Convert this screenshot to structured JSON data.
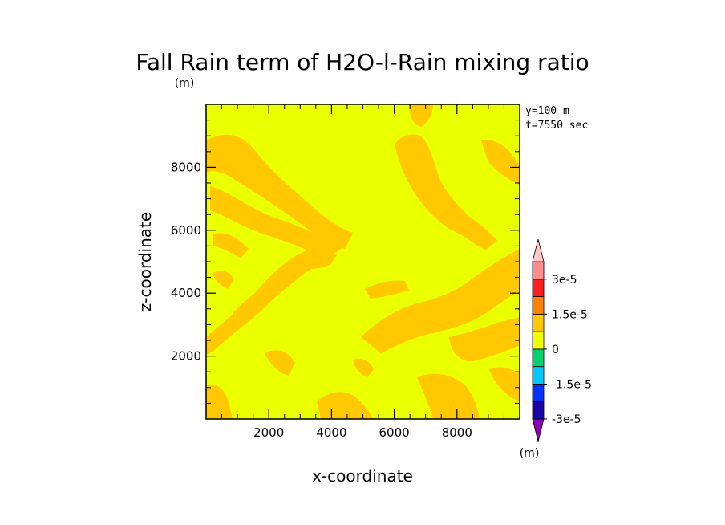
{
  "chart_data": {
    "type": "heatmap",
    "title": "Fall Rain term of H2O-l-Rain mixing ratio",
    "xlabel": "x-coordinate",
    "ylabel": "z-coordinate",
    "units_label": "(m)",
    "annotations": [
      "y=100 m",
      "t=7550 sec"
    ],
    "xlim": [
      0,
      10000
    ],
    "ylim": [
      0,
      10000
    ],
    "x_ticks": [
      2000,
      4000,
      6000,
      8000
    ],
    "y_ticks": [
      2000,
      4000,
      6000,
      8000
    ],
    "colorbar": {
      "units_label": "(m)",
      "levels": [
        -3e-05,
        -2.25e-05,
        -1.5e-05,
        -7.5e-06,
        0,
        7.5e-06,
        1.5e-05,
        2.25e-05,
        3e-05
      ],
      "tick_labels": [
        "-3e-5",
        "-1.5e-5",
        "0",
        "1.5e-5",
        "3e-5"
      ],
      "colors": [
        "#8a00b4",
        "#1c00a8",
        "#0033ff",
        "#00c8ff",
        "#00d26e",
        "#f0ff00",
        "#ffc800",
        "#ff8200",
        "#ff1e1e",
        "#ff8c8c",
        "#ffc8c8"
      ]
    },
    "field_summary": {
      "background_value": "0 to 7.5e-6",
      "background_color": "#eaff00",
      "bands_value": "7.5e-6 to 1.5e-5",
      "bands_color": "#ffc800"
    }
  }
}
